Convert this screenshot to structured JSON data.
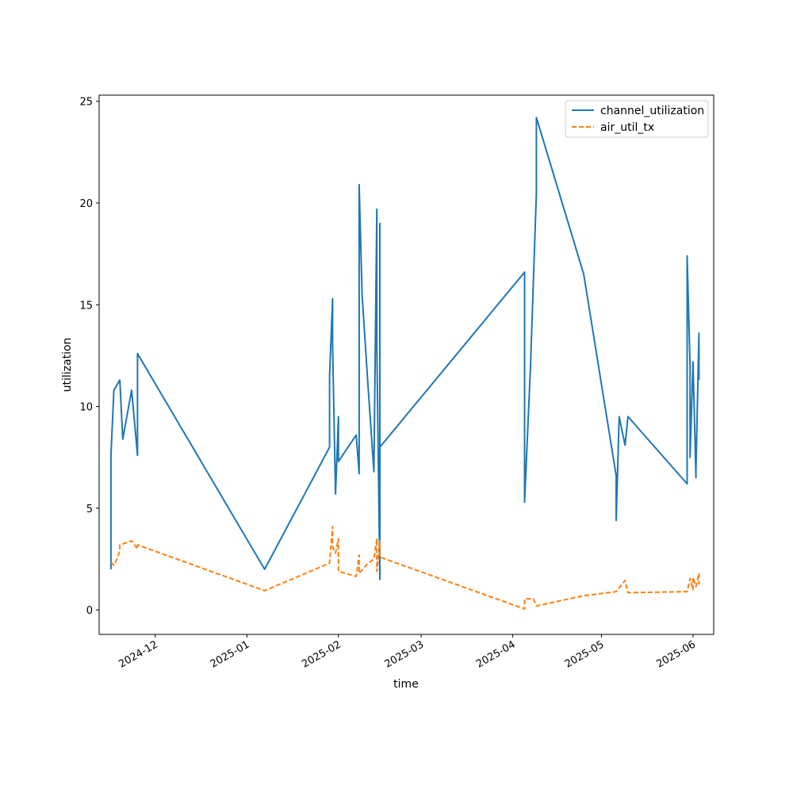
{
  "chart_data": {
    "type": "line",
    "xlabel": "time",
    "ylabel": "utilization",
    "xlim": [
      "2024-11-12",
      "2025-06-08"
    ],
    "ylim": [
      -1.2,
      25.3
    ],
    "x_ticks": [
      "2024-12",
      "2025-01",
      "2025-02",
      "2025-03",
      "2025-04",
      "2025-05",
      "2025-06"
    ],
    "y_ticks": [
      0,
      5,
      10,
      15,
      20,
      25
    ],
    "grid": false,
    "legend_position": "top-right",
    "series": [
      {
        "name": "channel_utilization",
        "color": "#1f77b4",
        "dash": "solid",
        "points": [
          [
            "2024-11-16",
            2.0
          ],
          [
            "2024-11-16",
            7.6
          ],
          [
            "2024-11-17",
            10.8
          ],
          [
            "2024-11-19",
            11.3
          ],
          [
            "2024-11-20",
            8.4
          ],
          [
            "2024-11-23",
            10.8
          ],
          [
            "2024-11-25",
            7.6
          ],
          [
            "2024-11-25",
            12.6
          ],
          [
            "2025-01-07",
            2.0
          ],
          [
            "2025-01-29",
            8.0
          ],
          [
            "2025-01-29",
            11.5
          ],
          [
            "2025-01-30",
            15.3
          ],
          [
            "2025-01-30",
            13.0
          ],
          [
            "2025-01-31",
            5.7
          ],
          [
            "2025-02-01",
            9.5
          ],
          [
            "2025-02-01",
            7.3
          ],
          [
            "2025-02-07",
            8.6
          ],
          [
            "2025-02-08",
            6.7
          ],
          [
            "2025-02-08",
            20.9
          ],
          [
            "2025-02-09",
            15.5
          ],
          [
            "2025-02-11",
            11.0
          ],
          [
            "2025-02-13",
            6.8
          ],
          [
            "2025-02-14",
            19.7
          ],
          [
            "2025-02-14",
            13.0
          ],
          [
            "2025-02-15",
            1.5
          ],
          [
            "2025-02-15",
            19.0
          ],
          [
            "2025-02-15",
            8.0
          ],
          [
            "2025-04-05",
            16.6
          ],
          [
            "2025-04-05",
            5.3
          ],
          [
            "2025-04-07",
            12.0
          ],
          [
            "2025-04-09",
            20.5
          ],
          [
            "2025-04-09",
            24.2
          ],
          [
            "2025-04-25",
            16.5
          ],
          [
            "2025-05-06",
            6.6
          ],
          [
            "2025-05-06",
            4.4
          ],
          [
            "2025-05-07",
            9.5
          ],
          [
            "2025-05-09",
            8.1
          ],
          [
            "2025-05-10",
            9.5
          ],
          [
            "2025-05-30",
            6.2
          ],
          [
            "2025-05-30",
            17.4
          ],
          [
            "2025-05-31",
            12.0
          ],
          [
            "2025-05-31",
            7.5
          ],
          [
            "2025-06-01",
            12.2
          ],
          [
            "2025-06-02",
            6.5
          ],
          [
            "2025-06-02",
            6.8
          ],
          [
            "2025-06-03",
            13.6
          ],
          [
            "2025-06-03",
            11.3
          ]
        ]
      },
      {
        "name": "air_util_tx",
        "color": "#ff7f0e",
        "dash": "dashed",
        "points": [
          [
            "2024-11-16",
            2.35
          ],
          [
            "2024-11-17",
            2.2
          ],
          [
            "2024-11-18",
            2.5
          ],
          [
            "2024-11-19",
            2.9
          ],
          [
            "2024-11-19",
            3.2
          ],
          [
            "2024-11-23",
            3.4
          ],
          [
            "2024-11-25",
            3.0
          ],
          [
            "2024-11-25",
            3.2
          ],
          [
            "2025-01-07",
            0.95
          ],
          [
            "2025-01-29",
            2.3
          ],
          [
            "2025-01-30",
            4.1
          ],
          [
            "2025-01-30",
            3.1
          ],
          [
            "2025-01-31",
            2.8
          ],
          [
            "2025-02-01",
            3.5
          ],
          [
            "2025-02-01",
            1.9
          ],
          [
            "2025-02-07",
            1.65
          ],
          [
            "2025-02-08",
            2.7
          ],
          [
            "2025-02-08",
            1.8
          ],
          [
            "2025-02-11",
            2.3
          ],
          [
            "2025-02-13",
            2.5
          ],
          [
            "2025-02-14",
            3.5
          ],
          [
            "2025-02-14",
            1.9
          ],
          [
            "2025-02-15",
            3.4
          ],
          [
            "2025-02-15",
            2.6
          ],
          [
            "2025-04-05",
            0.05
          ],
          [
            "2025-04-05",
            0.55
          ],
          [
            "2025-04-08",
            0.55
          ],
          [
            "2025-04-09",
            0.2
          ],
          [
            "2025-04-25",
            0.7
          ],
          [
            "2025-05-06",
            0.9
          ],
          [
            "2025-05-09",
            1.45
          ],
          [
            "2025-05-10",
            0.85
          ],
          [
            "2025-05-30",
            0.9
          ],
          [
            "2025-05-31",
            1.55
          ],
          [
            "2025-06-01",
            1.0
          ],
          [
            "2025-06-01",
            1.6
          ],
          [
            "2025-06-02",
            1.15
          ],
          [
            "2025-06-03",
            1.8
          ],
          [
            "2025-06-03",
            1.25
          ]
        ]
      }
    ]
  }
}
